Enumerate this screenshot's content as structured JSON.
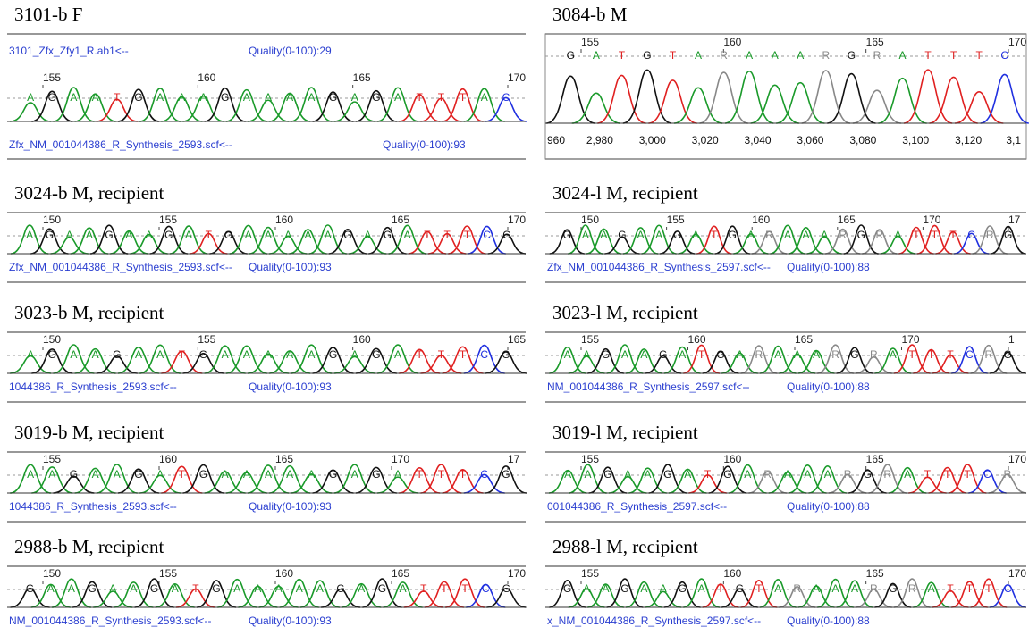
{
  "panels": [
    {
      "title": "3101-b F",
      "positions": [
        155,
        160,
        165,
        170
      ],
      "bases": [
        "A",
        "G",
        "A",
        "A",
        "T",
        "G",
        "A",
        "A",
        "A",
        "G",
        "A",
        "A",
        "A",
        "A",
        "G",
        "A",
        "G",
        "A",
        "T",
        "T",
        "T",
        "A",
        "C"
      ],
      "files": [
        {
          "name": "3101_Zfx_Zfy1_R.ab1<--",
          "quality": "Quality(0-100):29"
        },
        {
          "name": "Zfx_NM_001044386_R_Synthesis_2593.scf<--",
          "quality": "Quality(0-100):93"
        }
      ]
    },
    {
      "title": "3084-b M",
      "positions": [
        155,
        160,
        165,
        170
      ],
      "bases": [
        "G",
        "A",
        "T",
        "G",
        "T",
        "A",
        "R",
        "A",
        "A",
        "A",
        "R",
        "G",
        "R",
        "A",
        "T",
        "T",
        "T",
        "C"
      ],
      "axis": [
        "960",
        "2,980",
        "3,000",
        "3,020",
        "3,040",
        "3,060",
        "3,080",
        "3,100",
        "3,120",
        "3,1"
      ]
    },
    {
      "title": "3024-b M, recipient",
      "positions": [
        150,
        155,
        160,
        165,
        170
      ],
      "bases": [
        "A",
        "G",
        "A",
        "A",
        "G",
        "A",
        "A",
        "G",
        "A",
        "T",
        "G",
        "A",
        "A",
        "A",
        "A",
        "A",
        "G",
        "A",
        "G",
        "A",
        "T",
        "T",
        "T",
        "C",
        "G"
      ],
      "files": [
        {
          "name": "Zfx_NM_001044386_R_Synthesis_2593.scf<--",
          "quality": "Quality(0-100):93"
        }
      ]
    },
    {
      "title": "3024-l M, recipient",
      "positions": [
        150,
        155,
        160,
        165,
        170,
        17
      ],
      "bases": [
        "G",
        "A",
        "A",
        "G",
        "A",
        "A",
        "G",
        "A",
        "T",
        "G",
        "A",
        "R",
        "A",
        "A",
        "A",
        "R",
        "G",
        "R",
        "A",
        "T",
        "T",
        "T",
        "C",
        "R",
        "G"
      ],
      "files": [
        {
          "name": "Zfx_NM_001044386_R_Synthesis_2597.scf<--",
          "quality": "Quality(0-100):88"
        }
      ]
    },
    {
      "title": "3023-b M, recipient",
      "positions": [
        150,
        155,
        160,
        165
      ],
      "bases": [
        "A",
        "G",
        "A",
        "A",
        "G",
        "A",
        "A",
        "T",
        "G",
        "A",
        "A",
        "A",
        "A",
        "A",
        "G",
        "A",
        "G",
        "A",
        "T",
        "T",
        "T",
        "C",
        "G"
      ],
      "files": [
        {
          "name": "1044386_R_Synthesis_2593.scf<--",
          "quality": "Quality(0-100):93"
        }
      ]
    },
    {
      "title": "3023-l M, recipient",
      "positions": [
        155,
        160,
        165,
        170,
        1
      ],
      "bases": [
        "A",
        "A",
        "G",
        "A",
        "A",
        "G",
        "A",
        "T",
        "G",
        "A",
        "R",
        "A",
        "A",
        "A",
        "R",
        "G",
        "R",
        "A",
        "T",
        "T",
        "T",
        "C",
        "R",
        "G"
      ],
      "files": [
        {
          "name": "NM_001044386_R_Synthesis_2597.scf<--",
          "quality": "Quality(0-100):88"
        }
      ]
    },
    {
      "title": "3019-b M, recipient",
      "positions": [
        155,
        160,
        165,
        170,
        17
      ],
      "bases": [
        "A",
        "A",
        "G",
        "A",
        "A",
        "G",
        "A",
        "T",
        "G",
        "A",
        "A",
        "A",
        "A",
        "A",
        "G",
        "A",
        "G",
        "A",
        "T",
        "T",
        "T",
        "C",
        "G"
      ],
      "files": [
        {
          "name": "1044386_R_Synthesis_2593.scf<--",
          "quality": "Quality(0-100):93"
        }
      ]
    },
    {
      "title": "3019-l M, recipient",
      "positions": [
        155,
        160,
        165,
        170
      ],
      "bases": [
        "A",
        "A",
        "G",
        "A",
        "A",
        "G",
        "A",
        "T",
        "G",
        "A",
        "R",
        "A",
        "A",
        "A",
        "R",
        "G",
        "R",
        "A",
        "T",
        "T",
        "T",
        "C",
        "R"
      ],
      "files": [
        {
          "name": "001044386_R_Synthesis_2597.scf<--",
          "quality": "Quality(0-100):88"
        }
      ]
    },
    {
      "title": "2988-b M, recipient",
      "positions": [
        150,
        155,
        160,
        165,
        170
      ],
      "bases": [
        "G",
        "A",
        "A",
        "G",
        "A",
        "A",
        "G",
        "A",
        "T",
        "G",
        "A",
        "A",
        "A",
        "A",
        "A",
        "G",
        "A",
        "G",
        "A",
        "T",
        "T",
        "T",
        "C",
        "G"
      ],
      "files": [
        {
          "name": "NM_001044386_R_Synthesis_2593.scf<--",
          "quality": "Quality(0-100):93"
        }
      ]
    },
    {
      "title": "2988-l M, recipient",
      "positions": [
        155,
        160,
        165,
        170
      ],
      "bases": [
        "G",
        "A",
        "A",
        "G",
        "A",
        "A",
        "G",
        "A",
        "T",
        "G",
        "T",
        "A",
        "R",
        "A",
        "A",
        "A",
        "R",
        "G",
        "R",
        "A",
        "T",
        "T",
        "T",
        "C"
      ],
      "files": [
        {
          "name": "x_NM_001044386_R_Synthesis_2597.scf<--",
          "quality": "Quality(0-100):88"
        }
      ]
    }
  ]
}
